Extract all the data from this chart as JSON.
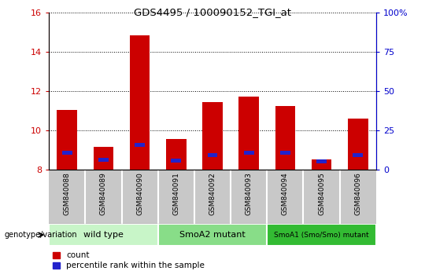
{
  "title": "GDS4495 / 100090152_TGI_at",
  "samples": [
    "GSM840088",
    "GSM840089",
    "GSM840090",
    "GSM840091",
    "GSM840092",
    "GSM840093",
    "GSM840094",
    "GSM840095",
    "GSM840096"
  ],
  "red_values": [
    11.05,
    9.15,
    14.85,
    9.55,
    11.45,
    11.7,
    11.25,
    8.5,
    10.6
  ],
  "blue_values": [
    8.85,
    8.5,
    9.25,
    8.45,
    8.75,
    8.85,
    8.85,
    8.4,
    8.75
  ],
  "ylim_left": [
    8,
    16
  ],
  "ylim_right": [
    0,
    100
  ],
  "yticks_left": [
    8,
    10,
    12,
    14,
    16
  ],
  "yticks_right": [
    0,
    25,
    50,
    75,
    100
  ],
  "groups": [
    {
      "label": "wild type",
      "start": 0,
      "end": 3,
      "color": "#c8f5c8"
    },
    {
      "label": "SmoA2 mutant",
      "start": 3,
      "end": 6,
      "color": "#88dd88"
    },
    {
      "label": "SmoA1 (Smo/Smo) mutant",
      "start": 6,
      "end": 9,
      "color": "#33bb33"
    }
  ],
  "bar_width": 0.55,
  "red_color": "#cc0000",
  "blue_color": "#2222cc",
  "sample_bg": "#c8c8c8",
  "plot_bg": "#ffffff",
  "left_axis_color": "#cc0000",
  "right_axis_color": "#0000cc",
  "legend_labels": [
    "count",
    "percentile rank within the sample"
  ],
  "genotype_label": "genotype/variation"
}
